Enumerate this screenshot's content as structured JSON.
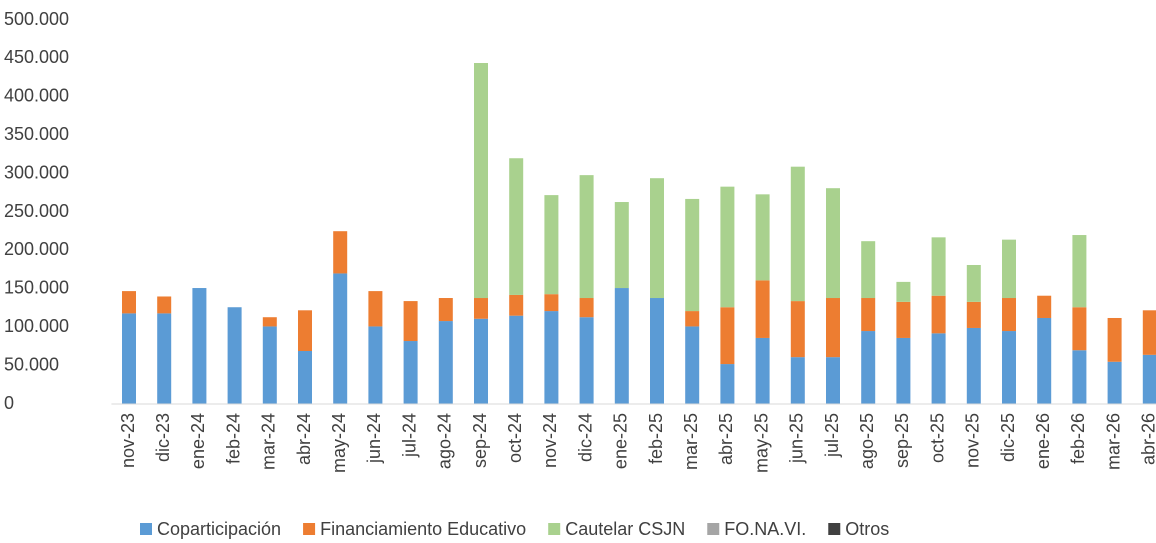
{
  "chart_data": {
    "type": "stacked_bar",
    "categories": [
      "nov-23",
      "dic-23",
      "ene-24",
      "feb-24",
      "mar-24",
      "abr-24",
      "may-24",
      "jun-24",
      "jul-24",
      "ago-24",
      "sep-24",
      "oct-24",
      "nov-24",
      "dic-24",
      "ene-25",
      "feb-25",
      "mar-25",
      "abr-25",
      "may-25",
      "jun-25",
      "jul-25",
      "ago-25",
      "sep-25",
      "oct-25",
      "nov-25",
      "dic-25",
      "ene-26",
      "feb-26",
      "mar-26",
      "abr-26"
    ],
    "series": [
      {
        "name": "Coparticipación",
        "color": "#5b9bd5",
        "values": [
          118000,
          118000,
          151000,
          126000,
          101000,
          69000,
          170000,
          101000,
          82000,
          108000,
          111000,
          115000,
          121000,
          113000,
          151000,
          138000,
          101000,
          52000,
          86000,
          61000,
          61000,
          95000,
          86000,
          92000,
          99000,
          95000,
          112000,
          70000,
          55000,
          64000
        ]
      },
      {
        "name": "Financiamiento Educativo",
        "color": "#ed7d31",
        "values": [
          29000,
          22000,
          0,
          0,
          12000,
          53000,
          55000,
          46000,
          52000,
          30000,
          27000,
          27000,
          22000,
          25000,
          0,
          0,
          20000,
          74000,
          75000,
          73000,
          77000,
          43000,
          47000,
          49000,
          34000,
          43000,
          29000,
          56000,
          57000,
          58000
        ]
      },
      {
        "name": "Cautelar CSJN",
        "color": "#a9d18e",
        "values": [
          0,
          0,
          0,
          0,
          0,
          0,
          0,
          0,
          0,
          0,
          306000,
          178000,
          129000,
          160000,
          112000,
          156000,
          146000,
          157000,
          112000,
          175000,
          143000,
          74000,
          26000,
          76000,
          48000,
          76000,
          0,
          94000,
          0,
          0
        ]
      },
      {
        "name": "FO.NA.VI.",
        "color": "#a5a5a5",
        "values": [
          0,
          0,
          0,
          0,
          0,
          0,
          0,
          0,
          0,
          0,
          0,
          0,
          0,
          0,
          0,
          0,
          0,
          0,
          0,
          0,
          0,
          0,
          0,
          0,
          0,
          0,
          0,
          0,
          0,
          0
        ]
      },
      {
        "name": "Otros",
        "color": "#404040",
        "values": [
          0,
          0,
          0,
          0,
          0,
          0,
          0,
          0,
          0,
          0,
          0,
          0,
          0,
          0,
          0,
          0,
          0,
          0,
          0,
          0,
          0,
          0,
          0,
          0,
          0,
          0,
          0,
          0,
          0,
          0
        ]
      }
    ],
    "ylim": [
      0,
      500000
    ],
    "yticks": [
      0,
      {
        "value": 50000,
        "label": "50.000"
      },
      {
        "value": 100000,
        "label": "100.000"
      },
      {
        "value": 150000,
        "label": "150.000"
      },
      {
        "value": 200000,
        "label": "200.000"
      },
      {
        "value": 250000,
        "label": "250.000"
      },
      {
        "value": 300000,
        "label": "300.000"
      },
      {
        "value": 350000,
        "label": "350.000"
      },
      {
        "value": 400000,
        "label": "400.000"
      },
      {
        "value": 450000,
        "label": "450.000"
      },
      {
        "value": 500000,
        "label": "500.000"
      }
    ],
    "grid": false,
    "legend": "bottom"
  }
}
